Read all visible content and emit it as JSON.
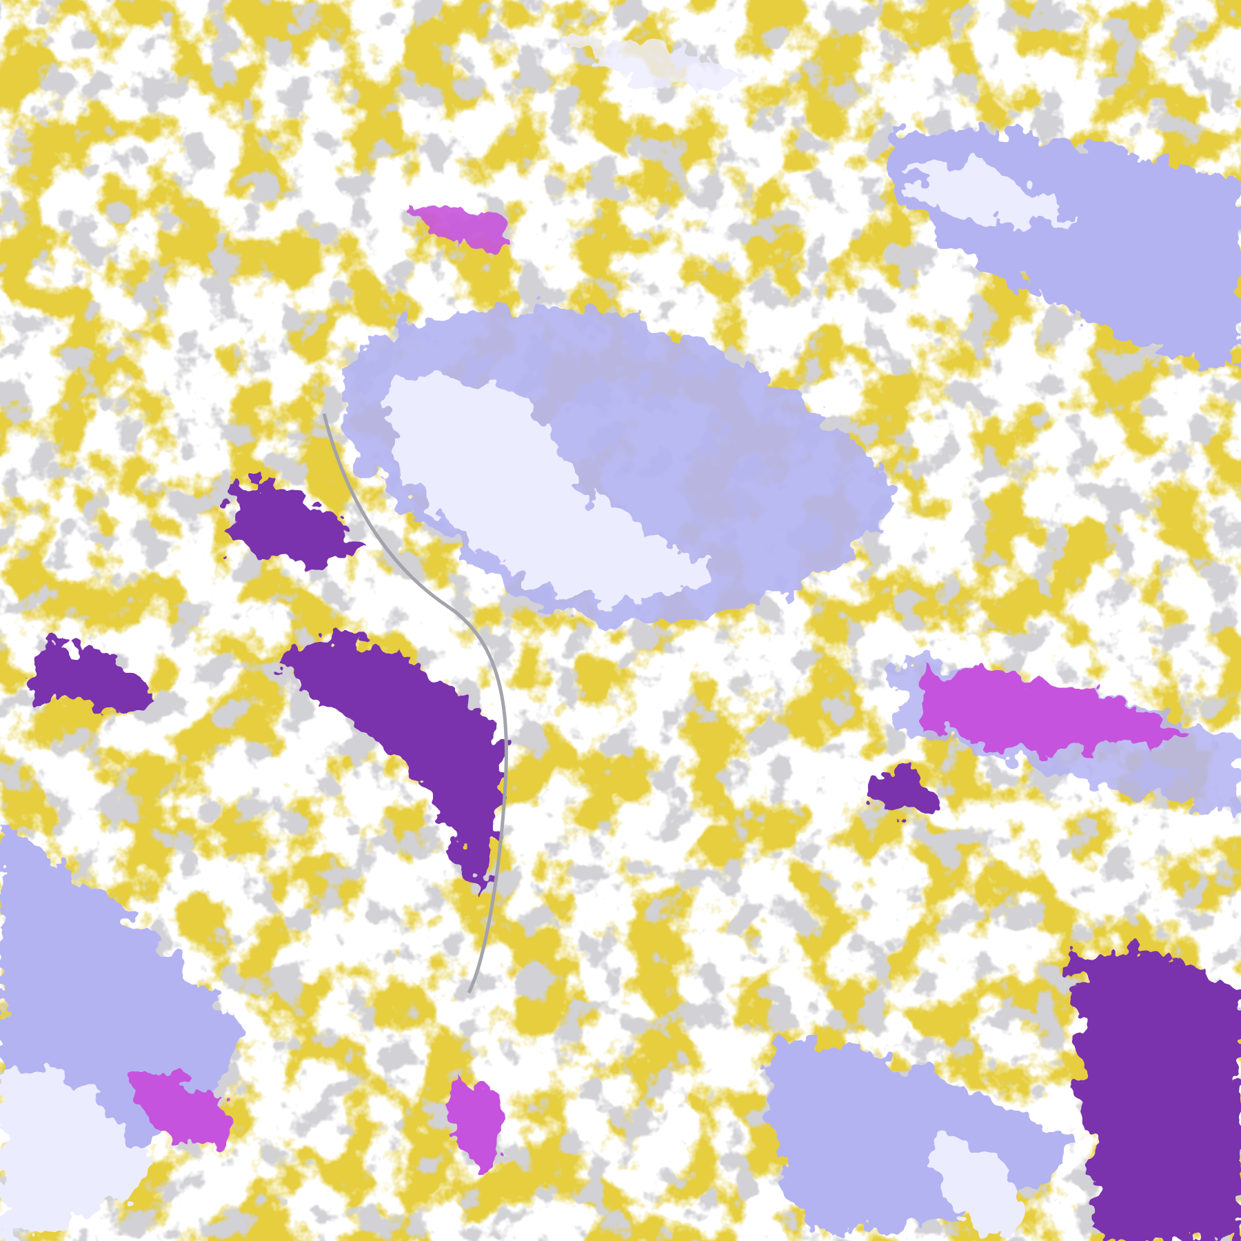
{
  "map": {
    "colors": {
      "background": "#ffffff",
      "gold": "#c99d0c",
      "dark_purple": "#7a32ad",
      "magenta": "#c653dd",
      "lavender": "#ececff",
      "periwinkle": "#b3b3f2",
      "gray": "#a3a3ab"
    }
  }
}
